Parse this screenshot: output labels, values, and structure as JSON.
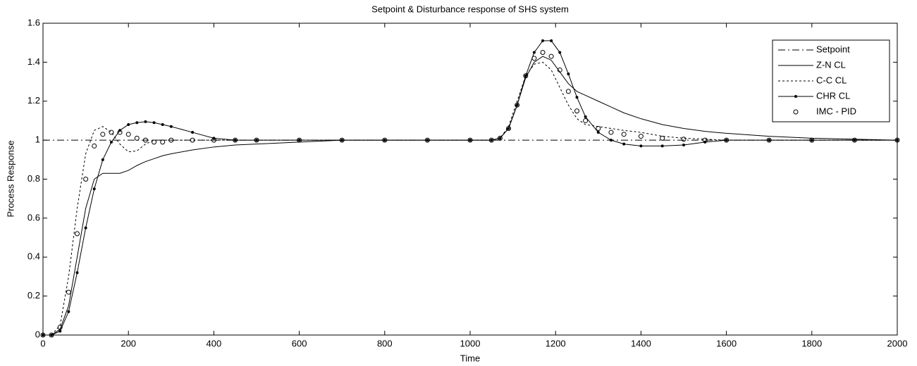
{
  "chart_data": {
    "type": "line",
    "title": "Setpoint & Disturbance response of SHS system",
    "x_label": "Time",
    "y_label": "Process Response",
    "x": [
      0,
      20,
      40,
      60,
      80,
      100,
      120,
      140,
      160,
      180,
      200,
      220,
      240,
      260,
      280,
      300,
      350,
      400,
      450,
      500,
      600,
      700,
      800,
      900,
      1000,
      1050,
      1070,
      1090,
      1110,
      1130,
      1150,
      1170,
      1190,
      1210,
      1230,
      1250,
      1270,
      1300,
      1330,
      1360,
      1400,
      1450,
      1500,
      1550,
      1600,
      1700,
      1800,
      1900,
      2000
    ],
    "series": [
      {
        "name": "Setpoint",
        "color": "#000000",
        "linestyle": "-.",
        "marker": "none",
        "values": [
          1,
          1,
          1,
          1,
          1,
          1,
          1,
          1,
          1,
          1,
          1,
          1,
          1,
          1,
          1,
          1,
          1,
          1,
          1,
          1,
          1,
          1,
          1,
          1,
          1,
          1,
          1,
          1,
          1,
          1,
          1,
          1,
          1,
          1,
          1,
          1,
          1,
          1,
          1,
          1,
          1,
          1,
          1,
          1,
          1,
          1,
          1,
          1,
          1
        ]
      },
      {
        "name": "Z-N CL",
        "color": "#000000",
        "linestyle": "-",
        "marker": "none",
        "values": [
          0,
          0,
          0.03,
          0.15,
          0.4,
          0.65,
          0.8,
          0.83,
          0.83,
          0.83,
          0.845,
          0.87,
          0.89,
          0.905,
          0.92,
          0.93,
          0.95,
          0.965,
          0.975,
          0.98,
          0.99,
          1,
          1,
          1,
          1,
          1,
          1.01,
          1.06,
          1.18,
          1.32,
          1.4,
          1.43,
          1.41,
          1.35,
          1.29,
          1.25,
          1.23,
          1.2,
          1.17,
          1.14,
          1.11,
          1.08,
          1.06,
          1.045,
          1.035,
          1.02,
          1.01,
          1.005,
          1
        ]
      },
      {
        "name": "C-C CL",
        "color": "#000000",
        "linestyle": "--",
        "marker": "none",
        "values": [
          0,
          0,
          0.05,
          0.3,
          0.65,
          0.93,
          1.05,
          1.07,
          1.04,
          0.98,
          0.94,
          0.945,
          0.98,
          1,
          1,
          1,
          1,
          1,
          1,
          1,
          1,
          1,
          1,
          1,
          1,
          1,
          1.01,
          1.07,
          1.2,
          1.33,
          1.39,
          1.4,
          1.36,
          1.27,
          1.18,
          1.11,
          1.08,
          1.07,
          1.06,
          1.05,
          1.04,
          1.02,
          1.01,
          1.005,
          1,
          1,
          1,
          1,
          1
        ]
      },
      {
        "name": "CHR CL",
        "color": "#000000",
        "linestyle": "-",
        "marker": ".",
        "values": [
          0,
          0,
          0.02,
          0.12,
          0.32,
          0.55,
          0.75,
          0.9,
          0.99,
          1.05,
          1.08,
          1.09,
          1.095,
          1.09,
          1.08,
          1.07,
          1.04,
          1.01,
          1,
          1,
          1,
          1,
          1,
          1,
          1,
          1,
          1.01,
          1.06,
          1.18,
          1.33,
          1.45,
          1.51,
          1.51,
          1.45,
          1.34,
          1.22,
          1.12,
          1.04,
          1,
          0.98,
          0.97,
          0.97,
          0.975,
          0.99,
          1,
          1,
          1,
          1,
          1
        ]
      },
      {
        "name": "IMC - PID",
        "color": "#000000",
        "linestyle": "none",
        "marker": "o",
        "values": [
          0,
          0,
          0.04,
          0.22,
          0.52,
          0.8,
          0.97,
          1.03,
          1.04,
          1.04,
          1.03,
          1.01,
          1,
          0.99,
          0.99,
          1,
          1,
          1,
          1,
          1,
          1,
          1,
          1,
          1,
          1,
          1,
          1.01,
          1.06,
          1.18,
          1.33,
          1.42,
          1.45,
          1.43,
          1.36,
          1.25,
          1.15,
          1.1,
          1.06,
          1.04,
          1.03,
          1.02,
          1.01,
          1.005,
          1,
          1,
          1,
          1,
          1,
          1
        ]
      }
    ],
    "xlim": [
      0,
      2000
    ],
    "xticks": [
      0,
      200,
      400,
      600,
      800,
      1000,
      1200,
      1400,
      1600,
      1800,
      2000
    ],
    "ylim": [
      0,
      1.6
    ],
    "yticks": [
      0,
      0.2,
      0.4,
      0.6,
      0.8,
      1,
      1.2,
      1.4,
      1.6
    ],
    "grid": false,
    "legend": "northeast"
  }
}
